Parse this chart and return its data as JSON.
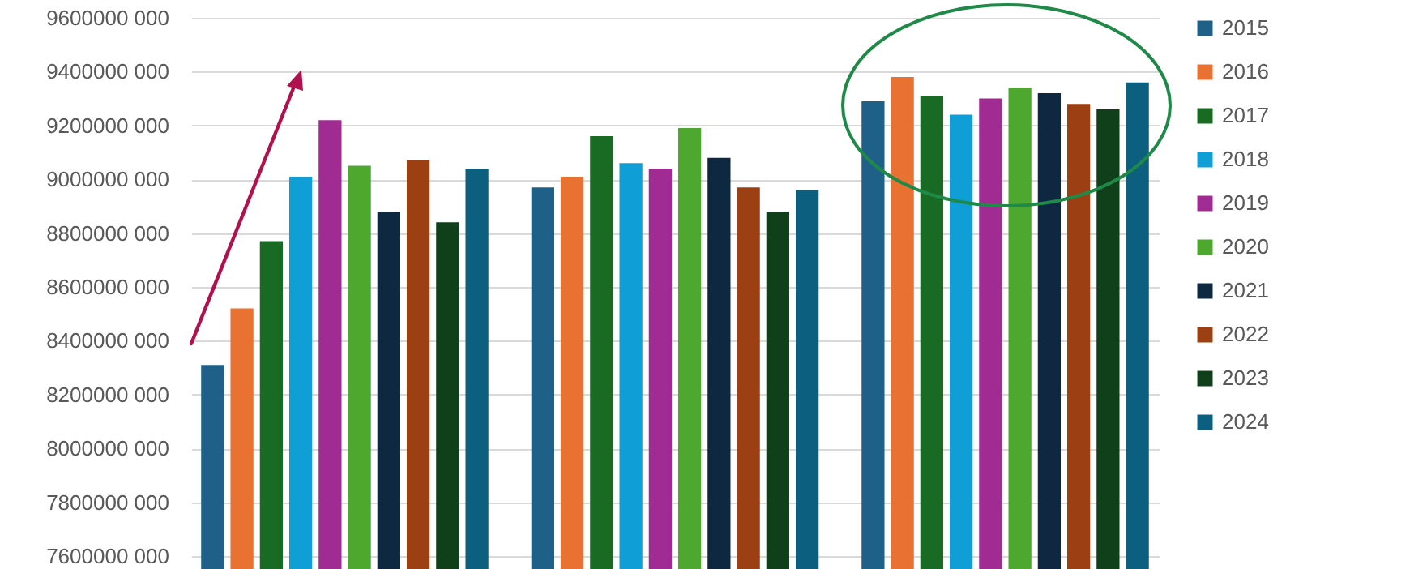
{
  "chart_data": {
    "type": "bar",
    "categories": [
      null,
      null,
      null
    ],
    "series": [
      {
        "name": "2015",
        "color": "#1f6088",
        "values": [
          8310000000,
          8970000000,
          9290000000
        ]
      },
      {
        "name": "2016",
        "color": "#e97132",
        "values": [
          8520000000,
          9010000000,
          9380000000
        ]
      },
      {
        "name": "2017",
        "color": "#196b24",
        "values": [
          8770000000,
          9160000000,
          9310000000
        ]
      },
      {
        "name": "2018",
        "color": "#0f9ed5",
        "values": [
          9010000000,
          9060000000,
          9240000000
        ]
      },
      {
        "name": "2019",
        "color": "#a02b93",
        "values": [
          9220000000,
          9040000000,
          9300000000
        ]
      },
      {
        "name": "2020",
        "color": "#4ea72e",
        "values": [
          9050000000,
          9190000000,
          9340000000
        ]
      },
      {
        "name": "2021",
        "color": "#0e2841",
        "values": [
          8880000000,
          9080000000,
          9320000000
        ]
      },
      {
        "name": "2022",
        "color": "#9c4013",
        "values": [
          9070000000,
          8970000000,
          9280000000
        ]
      },
      {
        "name": "2023",
        "color": "#0f4019",
        "values": [
          8840000000,
          8880000000,
          9260000000
        ]
      },
      {
        "name": "2024",
        "color": "#0d5f7f",
        "values": [
          9040000000,
          8960000000,
          9360000000
        ]
      }
    ],
    "ylim": [
      7600000000,
      9600000000
    ],
    "yticks": [
      {
        "value": 7600000000,
        "label": "7600000 000"
      },
      {
        "value": 7800000000,
        "label": "7800000 000"
      },
      {
        "value": 8000000000,
        "label": "8000000 000"
      },
      {
        "value": 8200000000,
        "label": "8200000 000"
      },
      {
        "value": 8400000000,
        "label": "8400000 000"
      },
      {
        "value": 8600000000,
        "label": "8600000 000"
      },
      {
        "value": 8800000000,
        "label": "8800000 000"
      },
      {
        "value": 9000000000,
        "label": "9000000 000"
      },
      {
        "value": 9200000000,
        "label": "9200000 000"
      },
      {
        "value": 9400000000,
        "label": "9400000 000"
      },
      {
        "value": 9600000000,
        "label": "9600000 000"
      }
    ],
    "grid": "y",
    "legend": "right"
  }
}
